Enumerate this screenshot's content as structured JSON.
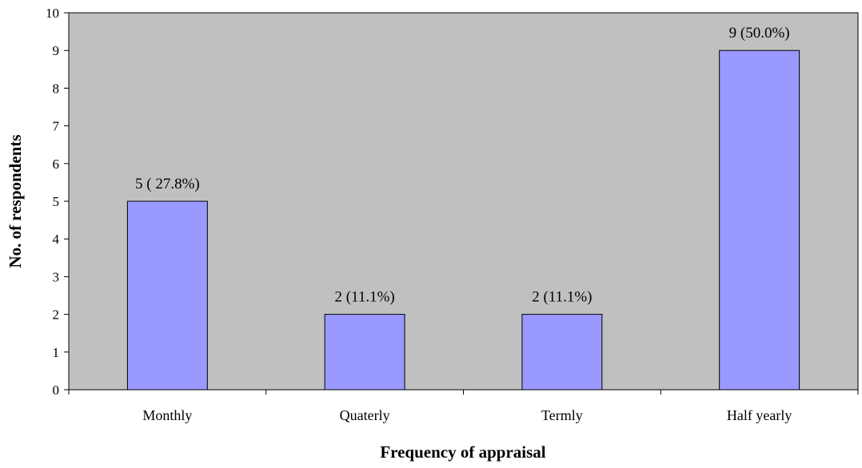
{
  "chart_data": {
    "type": "bar",
    "categories": [
      "Monthly",
      "Quaterly",
      "Termly",
      "Half yearly"
    ],
    "values": [
      5,
      2,
      2,
      9
    ],
    "data_labels": [
      "5 ( 27.8%)",
      "2 (11.1%)",
      "2 (11.1%)",
      "9 (50.0%)"
    ],
    "xlabel": "Frequency of appraisal",
    "ylabel": "No. of respondents",
    "ylim": [
      0,
      10
    ],
    "yticks": [
      "0",
      "1",
      "2",
      "3",
      "4",
      "5",
      "6",
      "7",
      "8",
      "9",
      "10"
    ],
    "grid": false,
    "legend": "none",
    "colors": {
      "plot_background": "#c0c0c0",
      "bar_fill": "#9999ff",
      "bar_stroke": "#000000",
      "axis": "#000000"
    }
  }
}
